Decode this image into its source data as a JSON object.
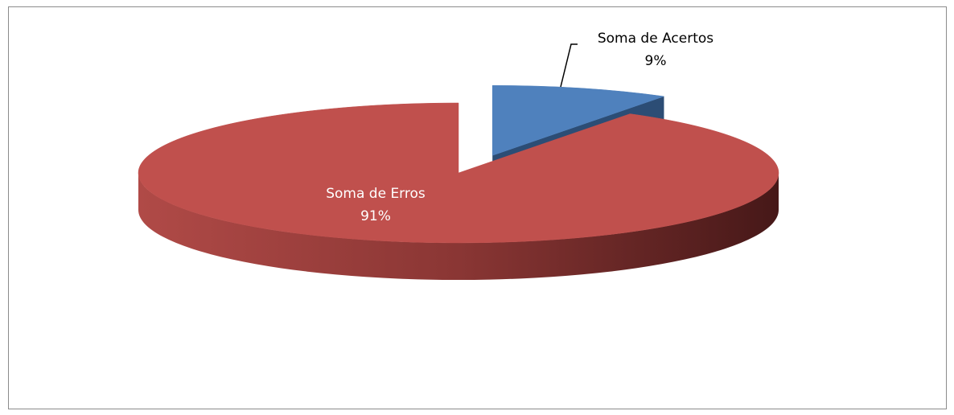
{
  "chart_data": {
    "type": "pie",
    "categories": [
      "Soma de Acertos",
      "Soma de Erros"
    ],
    "values": [
      9,
      91
    ],
    "value_labels": [
      "9%",
      "91%"
    ],
    "colors": [
      "#4f81bd",
      "#c0504d"
    ]
  }
}
